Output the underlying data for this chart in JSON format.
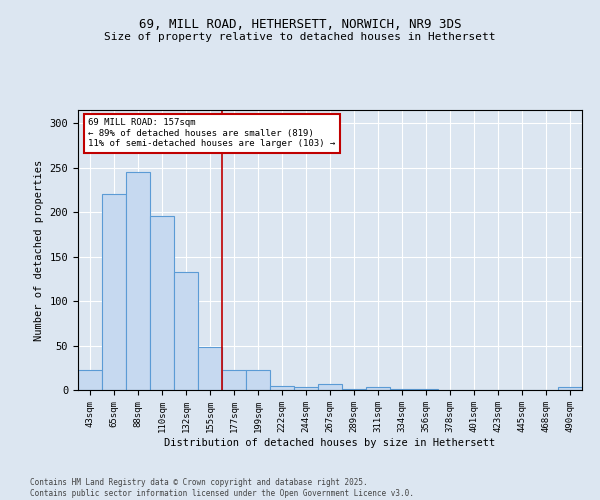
{
  "title1": "69, MILL ROAD, HETHERSETT, NORWICH, NR9 3DS",
  "title2": "Size of property relative to detached houses in Hethersett",
  "xlabel": "Distribution of detached houses by size in Hethersett",
  "ylabel": "Number of detached properties",
  "bar_labels": [
    "43sqm",
    "65sqm",
    "88sqm",
    "110sqm",
    "132sqm",
    "155sqm",
    "177sqm",
    "199sqm",
    "222sqm",
    "244sqm",
    "267sqm",
    "289sqm",
    "311sqm",
    "334sqm",
    "356sqm",
    "378sqm",
    "401sqm",
    "423sqm",
    "445sqm",
    "468sqm",
    "490sqm"
  ],
  "bar_values": [
    22,
    220,
    245,
    196,
    133,
    48,
    22,
    23,
    5,
    3,
    7,
    1,
    3,
    1,
    1,
    0,
    0,
    0,
    0,
    0,
    3
  ],
  "bar_color": "#c6d9f0",
  "bar_edge_color": "#5b9bd5",
  "vline_x": 5.5,
  "vline_color": "#c00000",
  "annotation_line1": "69 MILL ROAD: 157sqm",
  "annotation_line2": "← 89% of detached houses are smaller (819)",
  "annotation_line3": "11% of semi-detached houses are larger (103) →",
  "annotation_box_color": "#c00000",
  "footer": "Contains HM Land Registry data © Crown copyright and database right 2025.\nContains public sector information licensed under the Open Government Licence v3.0.",
  "ylim": [
    0,
    315
  ],
  "background_color": "#dce6f1",
  "yticks": [
    0,
    50,
    100,
    150,
    200,
    250,
    300
  ]
}
